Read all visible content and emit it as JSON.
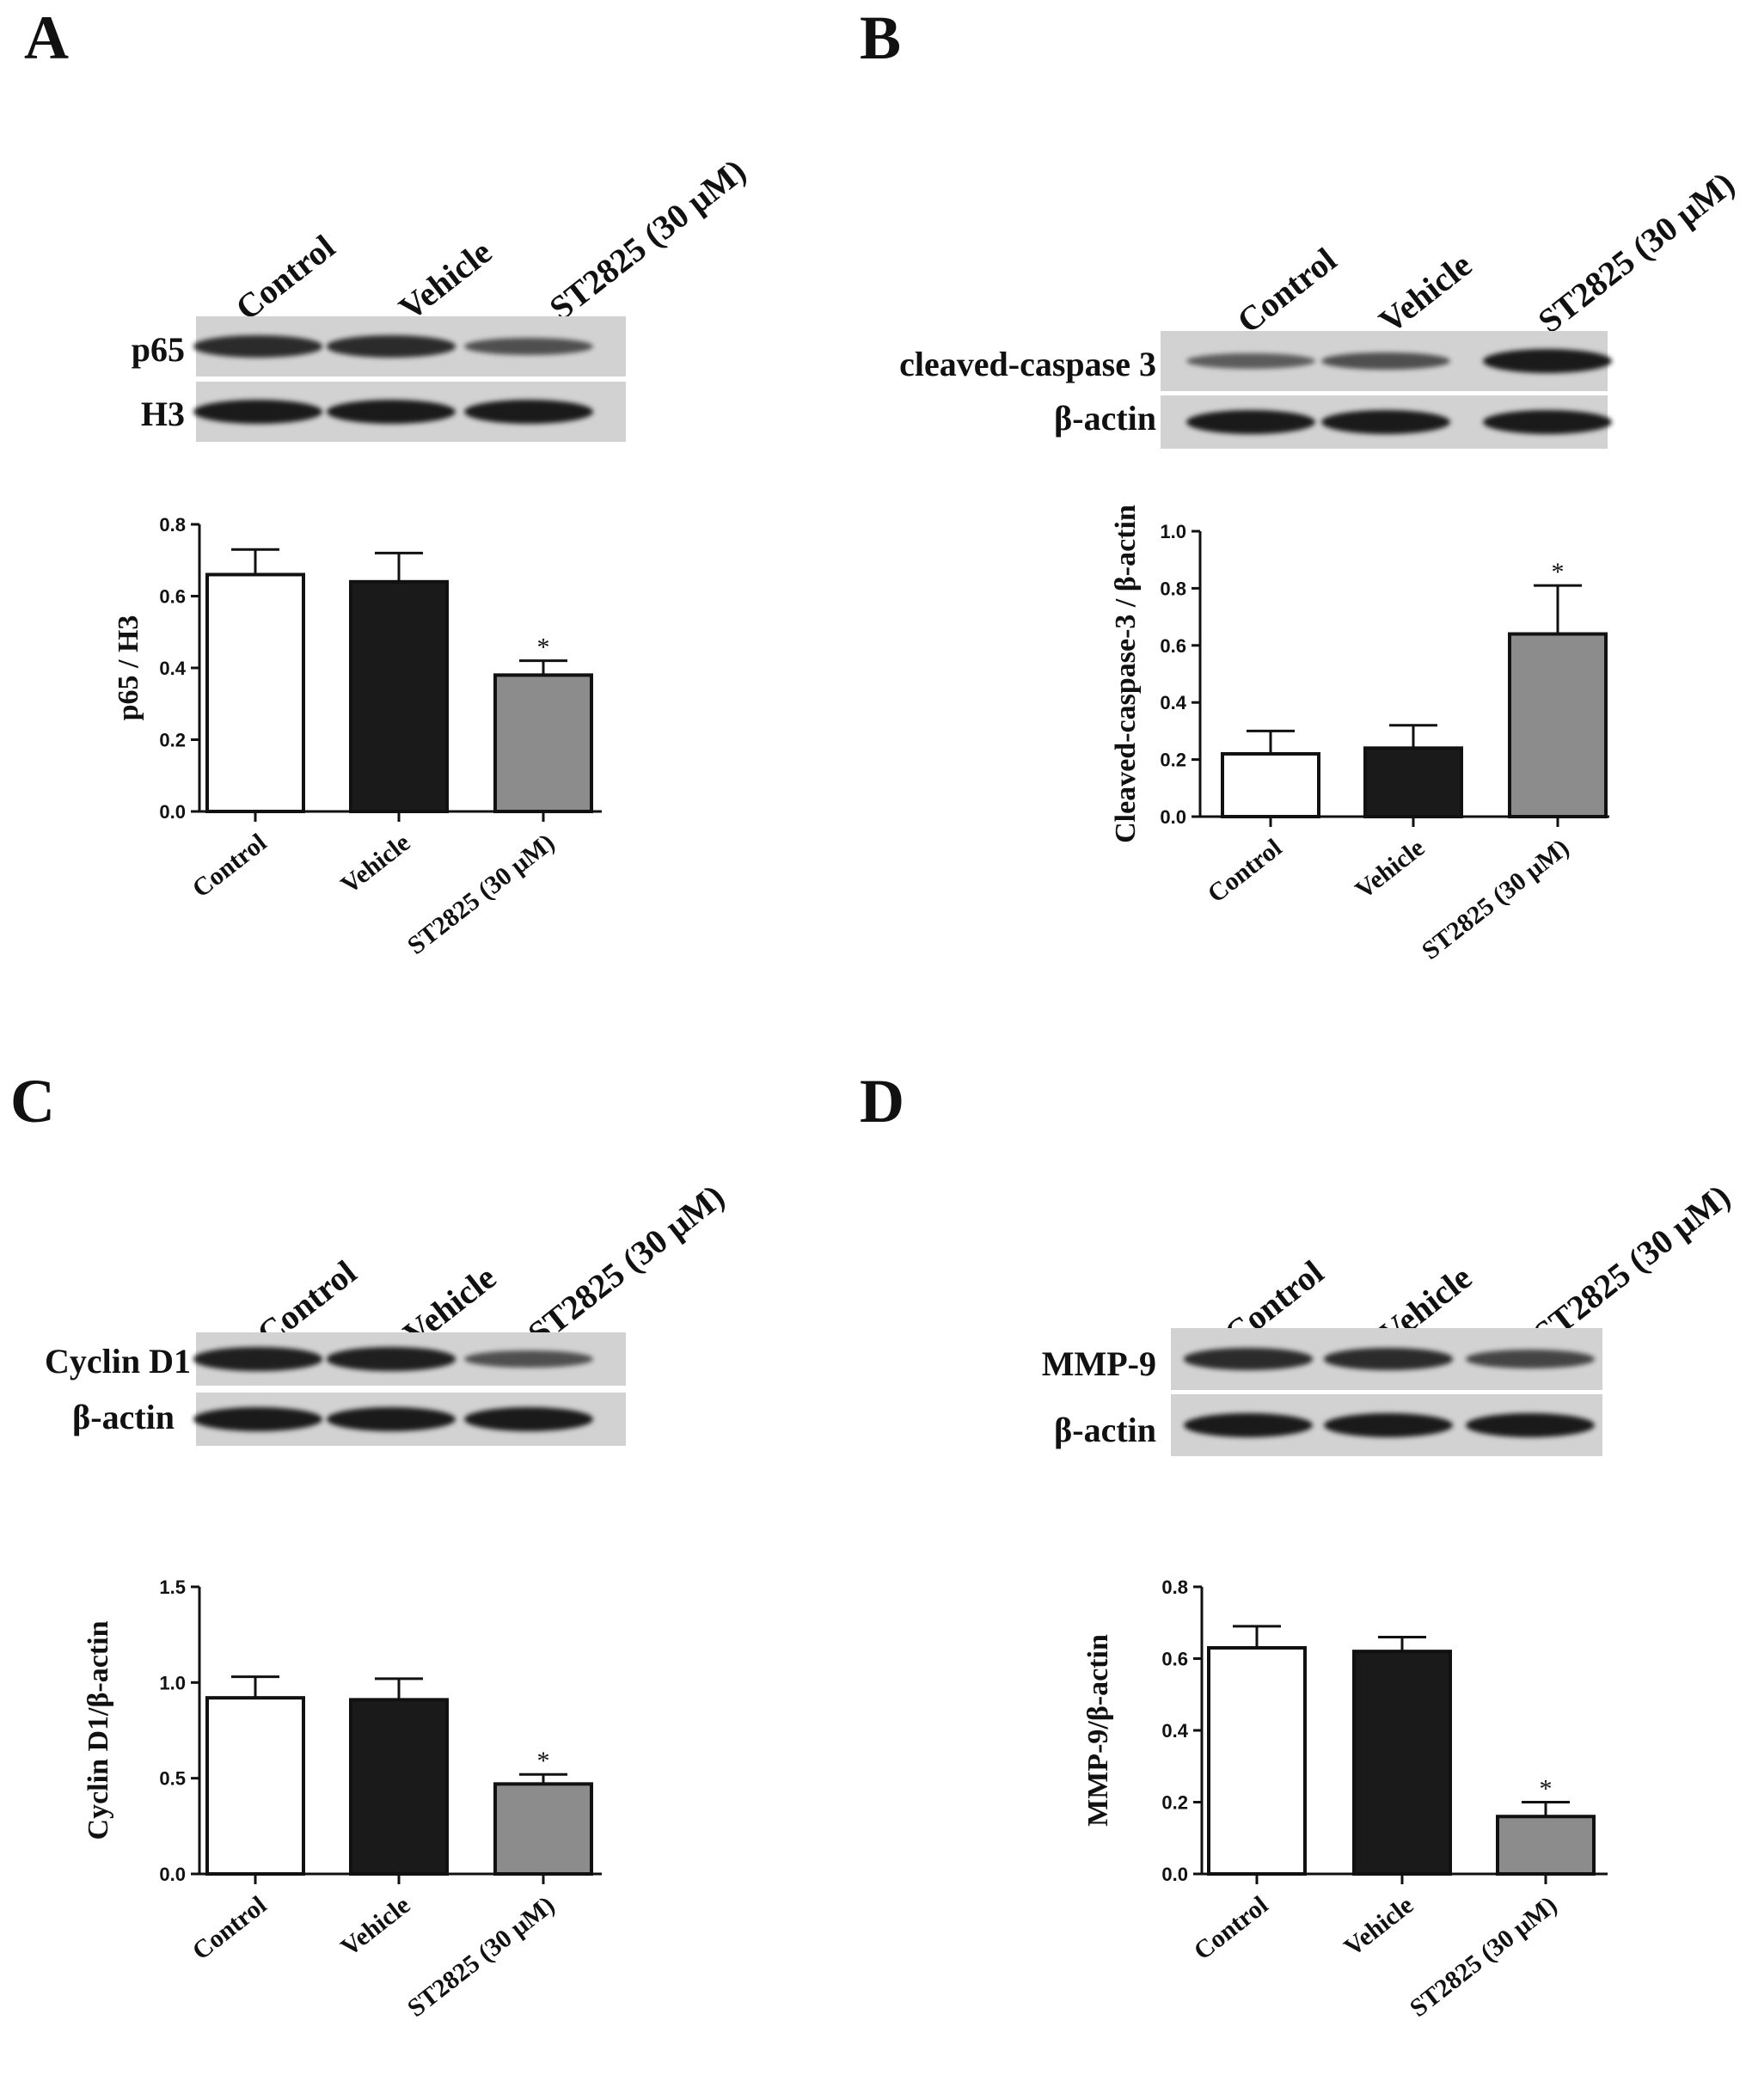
{
  "panels": [
    {
      "letter": "A",
      "lanes": [
        "Control",
        "Vehicle",
        "ST2825 (30 μM)"
      ],
      "blot_labels": [
        "p65",
        "H3"
      ],
      "band_intensity": [
        [
          0.85,
          0.85,
          0.55
        ],
        [
          1.0,
          1.0,
          1.0
        ]
      ]
    },
    {
      "letter": "B",
      "lanes": [
        "Control",
        "Vehicle",
        "ST2825 (30 μM)"
      ],
      "blot_labels": [
        "cleaved-caspase 3",
        "β-actin"
      ],
      "band_intensity": [
        [
          0.45,
          0.55,
          1.0
        ],
        [
          1.0,
          1.0,
          1.0
        ]
      ]
    },
    {
      "letter": "C",
      "lanes": [
        "Control",
        "Vehicle",
        "ST2825 (30 μM)"
      ],
      "blot_labels": [
        "Cyclin D1",
        "β-actin"
      ],
      "band_intensity": [
        [
          0.95,
          0.95,
          0.55
        ],
        [
          1.0,
          1.0,
          1.0
        ]
      ]
    },
    {
      "letter": "D",
      "lanes": [
        "Control",
        "Vehicle",
        "ST2825 (30 μM)"
      ],
      "blot_labels": [
        "MMP-9",
        "β-actin"
      ],
      "band_intensity": [
        [
          0.85,
          0.85,
          0.65
        ],
        [
          1.0,
          1.0,
          1.0
        ]
      ]
    }
  ],
  "chart_data": [
    {
      "type": "bar",
      "panel": "A",
      "categories": [
        "Control",
        "Vehicle",
        "ST2825 (30 μM)"
      ],
      "values": [
        0.66,
        0.64,
        0.38
      ],
      "errors": [
        0.07,
        0.08,
        0.04
      ],
      "significance": [
        "",
        "",
        "*"
      ],
      "colors": [
        "#ffffff",
        "#1a1a1a",
        "#8c8c8c"
      ],
      "ylabel": "p65 / H3",
      "ylim": [
        0,
        0.8
      ],
      "yticks": [
        "0.0",
        "0.2",
        "0.4",
        "0.6",
        "0.8"
      ]
    },
    {
      "type": "bar",
      "panel": "B",
      "categories": [
        "Control",
        "Vehicle",
        "ST2825 (30 μM)"
      ],
      "values": [
        0.22,
        0.24,
        0.64
      ],
      "errors": [
        0.08,
        0.08,
        0.17
      ],
      "significance": [
        "",
        "",
        "*"
      ],
      "colors": [
        "#ffffff",
        "#1a1a1a",
        "#8c8c8c"
      ],
      "ylabel": "Cleaved-caspase-3 / β-actin",
      "ylim": [
        0,
        1.0
      ],
      "yticks": [
        "0.0",
        "0.2",
        "0.4",
        "0.6",
        "0.8",
        "1.0"
      ]
    },
    {
      "type": "bar",
      "panel": "C",
      "categories": [
        "Control",
        "Vehicle",
        "ST2825 (30 μM)"
      ],
      "values": [
        0.92,
        0.91,
        0.47
      ],
      "errors": [
        0.11,
        0.11,
        0.05
      ],
      "significance": [
        "",
        "",
        "*"
      ],
      "colors": [
        "#ffffff",
        "#1a1a1a",
        "#8c8c8c"
      ],
      "ylabel": "Cyclin D1/β-actin",
      "ylim": [
        0,
        1.5
      ],
      "yticks": [
        "0.0",
        "0.5",
        "1.0",
        "1.5"
      ]
    },
    {
      "type": "bar",
      "panel": "D",
      "categories": [
        "Control",
        "Vehicle",
        "ST2825 (30 μM)"
      ],
      "values": [
        0.63,
        0.62,
        0.16
      ],
      "errors": [
        0.06,
        0.04,
        0.04
      ],
      "significance": [
        "",
        "",
        "*"
      ],
      "colors": [
        "#ffffff",
        "#1a1a1a",
        "#8c8c8c"
      ],
      "ylabel": "MMP-9/β-actin",
      "ylim": [
        0,
        0.8
      ],
      "yticks": [
        "0.0",
        "0.2",
        "0.4",
        "0.6",
        "0.8"
      ]
    }
  ]
}
